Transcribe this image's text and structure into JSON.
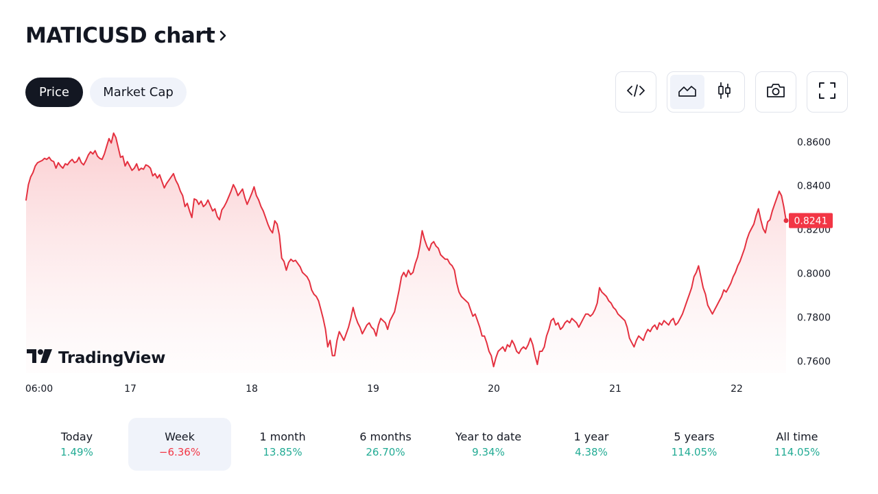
{
  "header": {
    "title": "MATICUSD chart",
    "chevron_icon": "chevron-right-icon"
  },
  "tabs": [
    {
      "label": "Price",
      "active": true
    },
    {
      "label": "Market Cap",
      "active": false
    }
  ],
  "toolbar": {
    "embed_icon": "code-icon",
    "chart_styles": [
      {
        "icon": "area-chart-icon",
        "active": true
      },
      {
        "icon": "candlestick-icon",
        "active": false
      }
    ],
    "snapshot_icon": "camera-icon",
    "fullscreen_icon": "fullscreen-icon"
  },
  "brand": {
    "name": "TradingView"
  },
  "colors": {
    "line": "#e4303f",
    "positive": "#22ab94",
    "negative": "#f23645",
    "active_bg": "#f0f3fa"
  },
  "chart_data": {
    "type": "area",
    "symbol": "MATICUSD",
    "x_ticks": [
      "06:00",
      "17",
      "18",
      "19",
      "20",
      "21",
      "22"
    ],
    "y_ticks": [
      "0.8600",
      "0.8400",
      "0.8200",
      "0.8000",
      "0.7800",
      "0.7600"
    ],
    "ylim": [
      0.7545,
      0.8665
    ],
    "last_price": "0.8241",
    "series": [
      {
        "values": [
          0.8335,
          0.8405,
          0.844,
          0.846,
          0.849,
          0.8505,
          0.851,
          0.8515,
          0.8525,
          0.852,
          0.853,
          0.8515,
          0.851,
          0.848,
          0.8505,
          0.849,
          0.848,
          0.85,
          0.8495,
          0.851,
          0.852,
          0.8505,
          0.851,
          0.853,
          0.8505,
          0.8495,
          0.8515,
          0.854,
          0.8555,
          0.8545,
          0.856,
          0.8535,
          0.8525,
          0.852,
          0.8545,
          0.858,
          0.8615,
          0.8595,
          0.864,
          0.862,
          0.8575,
          0.853,
          0.8535,
          0.849,
          0.851,
          0.849,
          0.847,
          0.848,
          0.85,
          0.847,
          0.848,
          0.8475,
          0.8495,
          0.849,
          0.848,
          0.8445,
          0.8455,
          0.8435,
          0.845,
          0.842,
          0.839,
          0.841,
          0.8425,
          0.844,
          0.8455,
          0.8425,
          0.8405,
          0.8375,
          0.8355,
          0.8305,
          0.832,
          0.8285,
          0.8255,
          0.834,
          0.8335,
          0.8315,
          0.833,
          0.8305,
          0.8315,
          0.8335,
          0.831,
          0.8285,
          0.8295,
          0.826,
          0.8245,
          0.829,
          0.8305,
          0.8325,
          0.835,
          0.8375,
          0.8405,
          0.8385,
          0.8355,
          0.837,
          0.8385,
          0.8345,
          0.8315,
          0.834,
          0.8365,
          0.8395,
          0.8355,
          0.8335,
          0.8305,
          0.8285,
          0.8255,
          0.8225,
          0.82,
          0.8185,
          0.824,
          0.8225,
          0.8175,
          0.807,
          0.8055,
          0.8015,
          0.805,
          0.8065,
          0.8055,
          0.806,
          0.8045,
          0.803,
          0.8005,
          0.7995,
          0.7985,
          0.7965,
          0.7925,
          0.7905,
          0.7895,
          0.7875,
          0.7835,
          0.7795,
          0.7745,
          0.7665,
          0.7695,
          0.7625,
          0.7625,
          0.7695,
          0.7735,
          0.7715,
          0.7695,
          0.7725,
          0.7755,
          0.7795,
          0.7845,
          0.7805,
          0.7775,
          0.7755,
          0.7725,
          0.7745,
          0.7765,
          0.7775,
          0.7755,
          0.7745,
          0.7715,
          0.7765,
          0.7795,
          0.7785,
          0.7775,
          0.7745,
          0.7785,
          0.7805,
          0.7825,
          0.7875,
          0.7925,
          0.7985,
          0.8005,
          0.7985,
          0.8015,
          0.7995,
          0.8005,
          0.8045,
          0.8075,
          0.8125,
          0.8195,
          0.8155,
          0.8125,
          0.8105,
          0.8135,
          0.8145,
          0.8125,
          0.8115,
          0.8085,
          0.8075,
          0.8065,
          0.8065,
          0.8045,
          0.8035,
          0.8015,
          0.7955,
          0.7915,
          0.7895,
          0.7885,
          0.7875,
          0.7865,
          0.7835,
          0.7805,
          0.7815,
          0.7785,
          0.7755,
          0.7715,
          0.7715,
          0.7685,
          0.7645,
          0.7625,
          0.7575,
          0.7615,
          0.7645,
          0.7655,
          0.7665,
          0.7645,
          0.7675,
          0.7665,
          0.7695,
          0.7675,
          0.7645,
          0.7635,
          0.7655,
          0.7665,
          0.7655,
          0.7675,
          0.7705,
          0.7675,
          0.7625,
          0.7585,
          0.7645,
          0.7645,
          0.7665,
          0.7715,
          0.7745,
          0.7785,
          0.7795,
          0.7765,
          0.7775,
          0.7745,
          0.7755,
          0.7775,
          0.7785,
          0.7775,
          0.7795,
          0.7785,
          0.7775,
          0.7755,
          0.7775,
          0.7795,
          0.7815,
          0.7815,
          0.7805,
          0.7815,
          0.7835,
          0.7865,
          0.7935,
          0.7915,
          0.7905,
          0.7895,
          0.7875,
          0.7865,
          0.7845,
          0.7835,
          0.7815,
          0.7805,
          0.7795,
          0.7785,
          0.7755,
          0.7705,
          0.7685,
          0.7665,
          0.7695,
          0.7715,
          0.7705,
          0.7695,
          0.7725,
          0.7745,
          0.7735,
          0.7755,
          0.7765,
          0.7745,
          0.7775,
          0.7765,
          0.7785,
          0.7775,
          0.7765,
          0.7785,
          0.7795,
          0.7765,
          0.7775,
          0.7795,
          0.7815,
          0.7845,
          0.7875,
          0.7905,
          0.7935,
          0.7985,
          0.8005,
          0.8035,
          0.7985,
          0.7935,
          0.7905,
          0.7855,
          0.7835,
          0.7815,
          0.7835,
          0.7855,
          0.7875,
          0.7895,
          0.7925,
          0.7915,
          0.7935,
          0.7955,
          0.7985,
          0.8005,
          0.8035,
          0.8055,
          0.8085,
          0.8115,
          0.8155,
          0.8185,
          0.8205,
          0.8225,
          0.8265,
          0.8295,
          0.8245,
          0.8205,
          0.8185,
          0.8235,
          0.8245,
          0.8285,
          0.8315,
          0.8345,
          0.8375,
          0.8355,
          0.8305,
          0.8241
        ]
      }
    ]
  },
  "periods": [
    {
      "label": "Today",
      "value": "1.49%",
      "trend": "pos",
      "active": false
    },
    {
      "label": "Week",
      "value": "−6.36%",
      "trend": "neg",
      "active": true
    },
    {
      "label": "1 month",
      "value": "13.85%",
      "trend": "pos",
      "active": false
    },
    {
      "label": "6 months",
      "value": "26.70%",
      "trend": "pos",
      "active": false
    },
    {
      "label": "Year to date",
      "value": "9.34%",
      "trend": "pos",
      "active": false
    },
    {
      "label": "1 year",
      "value": "4.38%",
      "trend": "pos",
      "active": false
    },
    {
      "label": "5 years",
      "value": "114.05%",
      "trend": "pos",
      "active": false
    },
    {
      "label": "All time",
      "value": "114.05%",
      "trend": "pos",
      "active": false
    }
  ]
}
